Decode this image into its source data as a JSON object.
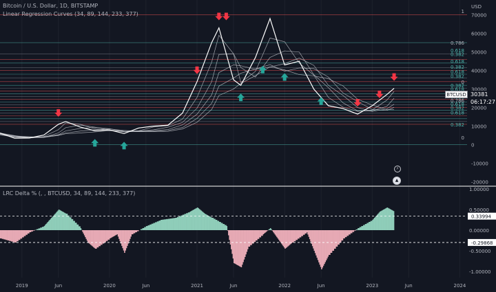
{
  "header": {
    "symbol_line": "Bitcoin / U.S. Dollar, 1D, BITSTAMP",
    "indicator_line": "Linear Regression Curves (34, 89, 144, 233, 377)",
    "oscillator_line": "LRC Delta % (, , BTCUSD, 34, 89, 144, 233, 377)"
  },
  "price_axis": {
    "currency": "USD",
    "ticks": [
      "70000",
      "60000",
      "50000",
      "40000",
      "30000",
      "20000",
      "10000",
      "0",
      "-10000",
      "-20000"
    ],
    "symbol_tag": "BTCUSD",
    "last_price": "30381",
    "countdown": "06:17:27"
  },
  "oscillator_axis": {
    "ticks": [
      "1.00000",
      "0.50000",
      "0.00000",
      "-0.50000",
      "-1.00000"
    ],
    "upper_tag": "0.33994",
    "lower_tag": "-0.29868"
  },
  "time_axis": {
    "labels": [
      "2019",
      "Jun",
      "2020",
      "Jun",
      "2021",
      "Jun",
      "2022",
      "Jun",
      "2023",
      "Jun",
      "2024"
    ]
  },
  "fib_labels": {
    "values": [
      "1",
      "0.786",
      "0.618",
      "0.382",
      "0.618",
      "0.382",
      "0.618",
      "0.382",
      "0",
      "0.382",
      "0.618",
      "0.382",
      "0.618",
      "0.786",
      "0.618",
      "0.382",
      "0.618",
      "0.382",
      "0"
    ]
  },
  "icons": {
    "settings": "lightning-icon",
    "favorite": "market-icon"
  },
  "colors": {
    "background": "#131722",
    "price_line": "#ffffff",
    "regression_curve": "#c7c9cf",
    "up_arrow": "#26a69a",
    "down_arrow": "#f23645",
    "fib_red": "#ef5350",
    "fib_teal": "#4db6ac",
    "osc_positive": "#8fcdb9",
    "osc_negative": "#e6a9b4"
  },
  "chart_data": [
    {
      "type": "line",
      "title": "Bitcoin / U.S. Dollar, 1D, BITSTAMP",
      "ylabel": "USD",
      "ylim": [
        -22000,
        78000
      ],
      "xlim": [
        "2018-10",
        "2024-02"
      ],
      "series": [
        {
          "name": "BTCUSD",
          "x": [
            "2018-10",
            "2018-12",
            "2019-02",
            "2019-04",
            "2019-06",
            "2019-07",
            "2019-09",
            "2019-11",
            "2020-01",
            "2020-03",
            "2020-05",
            "2020-07",
            "2020-09",
            "2020-11",
            "2021-01",
            "2021-03",
            "2021-04",
            "2021-06",
            "2021-07",
            "2021-09",
            "2021-11",
            "2022-01",
            "2022-03",
            "2022-05",
            "2022-07",
            "2022-09",
            "2022-11",
            "2023-01",
            "2023-03",
            "2023-04"
          ],
          "values": [
            6300,
            3500,
            3600,
            5200,
            11000,
            12500,
            9500,
            7500,
            8000,
            6000,
            9000,
            10000,
            10500,
            17000,
            34000,
            55000,
            63000,
            35000,
            32000,
            47000,
            68000,
            43000,
            45000,
            30000,
            21000,
            19500,
            16500,
            21000,
            27000,
            30381
          ]
        }
      ],
      "regression_curve_lengths": [
        34,
        89,
        144,
        233,
        377
      ],
      "markers": {
        "down_arrows": [
          "2019-06",
          "2021-01",
          "2021-04",
          "2021-05",
          "2022-11",
          "2023-02",
          "2023-04"
        ],
        "up_arrows": [
          "2019-11",
          "2020-03",
          "2021-07",
          "2021-10",
          "2022-01",
          "2022-06"
        ]
      }
    },
    {
      "type": "area",
      "title": "LRC Delta % (, , BTCUSD, 34, 89, 144, 233, 377)",
      "ylim": [
        -1.15,
        1.05
      ],
      "levels": [
        0.33994,
        -0.29868
      ],
      "series": [
        {
          "name": "LRC Delta %",
          "x": [
            "2018-10",
            "2018-12",
            "2019-02",
            "2019-04",
            "2019-05",
            "2019-06",
            "2019-07",
            "2019-09",
            "2019-10",
            "2019-11",
            "2020-01",
            "2020-02",
            "2020-03",
            "2020-04",
            "2020-06",
            "2020-08",
            "2020-10",
            "2020-12",
            "2021-01",
            "2021-02",
            "2021-03",
            "2021-05",
            "2021-06",
            "2021-07",
            "2021-08",
            "2021-10",
            "2021-11",
            "2021-12",
            "2022-01",
            "2022-02",
            "2022-04",
            "2022-05",
            "2022-06",
            "2022-07",
            "2022-09",
            "2022-11",
            "2023-01",
            "2023-02",
            "2023-03",
            "2023-04"
          ],
          "values": [
            -0.2,
            -0.3,
            -0.05,
            0.1,
            0.3,
            0.5,
            0.4,
            0.05,
            -0.3,
            -0.45,
            -0.2,
            -0.1,
            -0.55,
            -0.1,
            0.1,
            0.25,
            0.3,
            0.45,
            0.55,
            0.4,
            0.3,
            0.1,
            -0.8,
            -0.9,
            -0.4,
            -0.1,
            0.05,
            -0.2,
            -0.45,
            -0.3,
            -0.05,
            -0.5,
            -0.95,
            -0.6,
            -0.2,
            0.05,
            0.25,
            0.45,
            0.55,
            0.45
          ]
        }
      ]
    }
  ]
}
